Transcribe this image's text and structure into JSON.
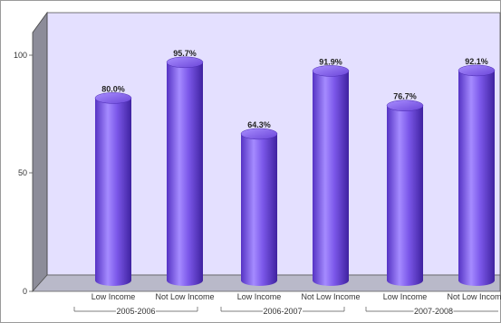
{
  "chart_data": {
    "type": "bar",
    "style": "3d-cylinder",
    "groups": [
      "2005-2006",
      "2006-2007",
      "2007-2008"
    ],
    "categories": [
      "Low Income",
      "Not Low Income"
    ],
    "bars": [
      {
        "group": "2005-2006",
        "category": "Low Income",
        "value": 80.0,
        "label": "80.0%"
      },
      {
        "group": "2005-2006",
        "category": "Not Low Income",
        "value": 95.7,
        "label": "95.7%"
      },
      {
        "group": "2006-2007",
        "category": "Low Income",
        "value": 64.3,
        "label": "64.3%"
      },
      {
        "group": "2006-2007",
        "category": "Not Low Income",
        "value": 91.9,
        "label": "91.9%"
      },
      {
        "group": "2007-2008",
        "category": "Low Income",
        "value": 76.7,
        "label": "76.7%"
      },
      {
        "group": "2007-2008",
        "category": "Not Low Income",
        "value": 92.1,
        "label": "92.1%"
      }
    ],
    "yticks": [
      "0",
      "50",
      "100"
    ],
    "ylim": [
      0,
      115
    ],
    "grid": false,
    "legend": "none",
    "colors": {
      "bar": "#7a55e8",
      "bar_light": "#b7a0ff",
      "bar_dark": "#4626a8",
      "plot_back": "#e4e0ff",
      "floor": "#b9b9c9",
      "side_wall": "#8c8c99"
    }
  }
}
